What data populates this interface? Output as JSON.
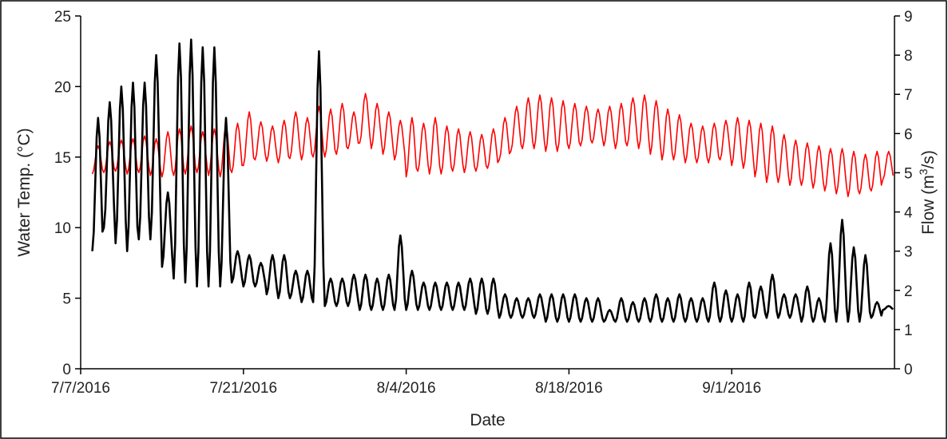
{
  "chart_data": {
    "type": "line",
    "xlabel": "Date",
    "ylabel_left": "Water Temp. (°C)",
    "ylabel_right_prefix": "Flow (m",
    "ylabel_right_sup": "3",
    "ylabel_right_suffix": "/s)",
    "x_axis": {
      "start_date": "2016-07-07",
      "end_date": "2016-09-15"
    },
    "x_ticks": [
      {
        "date": "2016-07-07",
        "label": "7/7/2016"
      },
      {
        "date": "2016-07-21",
        "label": "7/21/2016"
      },
      {
        "date": "2016-08-04",
        "label": "8/4/2016"
      },
      {
        "date": "2016-08-18",
        "label": "8/18/2016"
      },
      {
        "date": "2016-09-01",
        "label": "9/1/2016"
      }
    ],
    "ylim_left": [
      0,
      25
    ],
    "yticks_left": [
      "0",
      "5",
      "10",
      "15",
      "20",
      "25"
    ],
    "ylim_right": [
      0,
      9
    ],
    "yticks_right": [
      "0",
      "1",
      "2",
      "3",
      "4",
      "5",
      "6",
      "7",
      "8",
      "9"
    ],
    "grid": false,
    "legend": "none",
    "series": [
      {
        "axis": "left",
        "color": "#ff0000",
        "x_dates": [
          "2016-07-08",
          "2016-07-09",
          "2016-07-10",
          "2016-07-11",
          "2016-07-12",
          "2016-07-13",
          "2016-07-14",
          "2016-07-15",
          "2016-07-16",
          "2016-07-17",
          "2016-07-18",
          "2016-07-19",
          "2016-07-20",
          "2016-07-21",
          "2016-07-22",
          "2016-07-23",
          "2016-07-24",
          "2016-07-25",
          "2016-07-26",
          "2016-07-27",
          "2016-07-28",
          "2016-07-29",
          "2016-07-30",
          "2016-07-31",
          "2016-08-01",
          "2016-08-02",
          "2016-08-03",
          "2016-08-04",
          "2016-08-05",
          "2016-08-06",
          "2016-08-07",
          "2016-08-08",
          "2016-08-09",
          "2016-08-10",
          "2016-08-11",
          "2016-08-12",
          "2016-08-13",
          "2016-08-14",
          "2016-08-15",
          "2016-08-16",
          "2016-08-17",
          "2016-08-18",
          "2016-08-19",
          "2016-08-20",
          "2016-08-21",
          "2016-08-22",
          "2016-08-23",
          "2016-08-24",
          "2016-08-25",
          "2016-08-26",
          "2016-08-27",
          "2016-08-28",
          "2016-08-29",
          "2016-08-30",
          "2016-08-31",
          "2016-09-01",
          "2016-09-02",
          "2016-09-03",
          "2016-09-04",
          "2016-09-05",
          "2016-09-06",
          "2016-09-07",
          "2016-09-08",
          "2016-09-09",
          "2016-09-10",
          "2016-09-11",
          "2016-09-12",
          "2016-09-13",
          "2016-09-14"
        ],
        "daily_max": [
          15.8,
          16.1,
          16.2,
          16.3,
          16.5,
          16.3,
          16.8,
          17.0,
          17.2,
          16.8,
          17.0,
          17.2,
          17.4,
          18.2,
          17.5,
          17.2,
          17.6,
          18.2,
          17.8,
          18.6,
          18.4,
          18.8,
          18.2,
          19.5,
          18.8,
          18.2,
          17.6,
          17.8,
          17.4,
          17.8,
          17.2,
          17.0,
          16.8,
          16.6,
          17.0,
          17.8,
          18.6,
          19.2,
          19.4,
          19.2,
          19.0,
          18.8,
          18.6,
          18.4,
          18.6,
          18.8,
          19.2,
          19.4,
          19.0,
          18.4,
          18.0,
          17.4,
          17.2,
          17.4,
          17.6,
          17.8,
          17.6,
          17.4,
          17.2,
          16.6,
          16.2,
          16.0,
          15.8,
          15.6,
          15.6,
          15.4,
          15.2,
          15.4,
          15.4
        ],
        "daily_min": [
          13.8,
          13.9,
          14.0,
          13.8,
          13.9,
          13.7,
          13.6,
          13.7,
          13.8,
          13.9,
          13.7,
          13.6,
          13.9,
          14.4,
          14.8,
          14.7,
          14.6,
          14.9,
          14.8,
          15.0,
          15.0,
          15.2,
          15.6,
          16.0,
          15.6,
          15.2,
          14.8,
          13.6,
          14.0,
          13.8,
          13.8,
          14.0,
          13.9,
          14.0,
          14.2,
          14.8,
          15.4,
          15.6,
          15.6,
          15.4,
          15.4,
          15.6,
          15.8,
          16.0,
          15.8,
          15.6,
          15.8,
          15.6,
          15.2,
          14.8,
          14.8,
          14.6,
          14.6,
          14.6,
          14.8,
          14.4,
          14.2,
          13.6,
          13.2,
          13.2,
          13.0,
          13.0,
          12.8,
          12.6,
          12.4,
          12.2,
          12.4,
          12.6,
          13.4
        ]
      },
      {
        "axis": "right",
        "color": "#000000",
        "x_dates": [
          "2016-07-08",
          "2016-07-09",
          "2016-07-10",
          "2016-07-11",
          "2016-07-12",
          "2016-07-13",
          "2016-07-14",
          "2016-07-15",
          "2016-07-16",
          "2016-07-17",
          "2016-07-18",
          "2016-07-19",
          "2016-07-20",
          "2016-07-21",
          "2016-07-22",
          "2016-07-23",
          "2016-07-24",
          "2016-07-25",
          "2016-07-26",
          "2016-07-27",
          "2016-07-28",
          "2016-07-29",
          "2016-07-30",
          "2016-07-31",
          "2016-08-01",
          "2016-08-02",
          "2016-08-03",
          "2016-08-04",
          "2016-08-05",
          "2016-08-06",
          "2016-08-07",
          "2016-08-08",
          "2016-08-09",
          "2016-08-10",
          "2016-08-11",
          "2016-08-12",
          "2016-08-13",
          "2016-08-14",
          "2016-08-15",
          "2016-08-16",
          "2016-08-17",
          "2016-08-18",
          "2016-08-19",
          "2016-08-20",
          "2016-08-21",
          "2016-08-22",
          "2016-08-23",
          "2016-08-24",
          "2016-08-25",
          "2016-08-26",
          "2016-08-27",
          "2016-08-28",
          "2016-08-29",
          "2016-08-30",
          "2016-08-31",
          "2016-09-01",
          "2016-09-02",
          "2016-09-03",
          "2016-09-04",
          "2016-09-05",
          "2016-09-06",
          "2016-09-07",
          "2016-09-08",
          "2016-09-09",
          "2016-09-10",
          "2016-09-11",
          "2016-09-12",
          "2016-09-13",
          "2016-09-14"
        ],
        "daily_max": [
          6.4,
          6.8,
          7.2,
          7.3,
          7.3,
          8.0,
          4.5,
          8.3,
          8.4,
          8.2,
          8.2,
          6.4,
          3.0,
          2.9,
          2.7,
          2.9,
          2.9,
          2.5,
          2.5,
          8.1,
          2.3,
          2.3,
          2.4,
          2.4,
          2.3,
          2.4,
          3.4,
          2.5,
          2.2,
          2.2,
          2.2,
          2.2,
          2.3,
          2.3,
          2.3,
          1.9,
          1.8,
          1.8,
          1.9,
          1.9,
          1.9,
          1.9,
          1.8,
          1.8,
          1.5,
          1.8,
          1.7,
          1.8,
          1.9,
          1.8,
          1.9,
          1.8,
          1.8,
          2.2,
          2.0,
          1.9,
          2.2,
          2.1,
          2.4,
          1.9,
          1.9,
          2.1,
          1.8,
          3.2,
          3.8,
          3.1,
          2.9,
          1.7,
          1.6
        ],
        "daily_min": [
          3.0,
          3.6,
          3.2,
          3.0,
          3.3,
          3.3,
          2.6,
          2.3,
          2.2,
          2.1,
          2.1,
          2.1,
          2.2,
          2.1,
          2.1,
          1.9,
          1.8,
          1.8,
          1.7,
          1.7,
          1.6,
          1.6,
          1.6,
          1.5,
          1.5,
          1.5,
          1.5,
          1.5,
          1.5,
          1.5,
          1.5,
          1.5,
          1.5,
          1.4,
          1.4,
          1.3,
          1.3,
          1.3,
          1.3,
          1.2,
          1.2,
          1.2,
          1.2,
          1.2,
          1.2,
          1.2,
          1.2,
          1.2,
          1.2,
          1.2,
          1.2,
          1.2,
          1.2,
          1.2,
          1.2,
          1.2,
          1.2,
          1.3,
          1.3,
          1.3,
          1.3,
          1.2,
          1.2,
          1.2,
          1.2,
          1.2,
          1.2,
          1.3,
          1.5
        ]
      }
    ]
  }
}
